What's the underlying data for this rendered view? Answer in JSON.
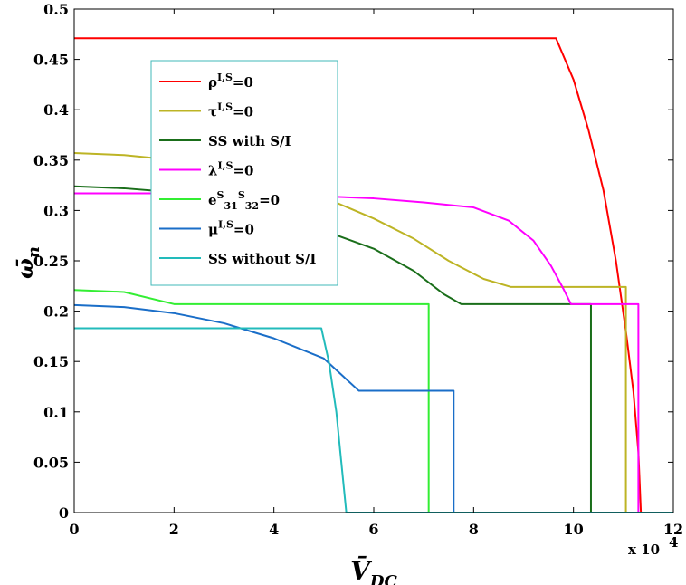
{
  "chart_data": {
    "type": "line",
    "xlabel": "V̄DC",
    "ylabel": "ω̄n",
    "x_multiplier": "x 10",
    "x_multiplier_exp": "4",
    "xlim": [
      0,
      12
    ],
    "ylim": [
      0,
      0.5
    ],
    "xticks": [
      0,
      2,
      4,
      6,
      8,
      10,
      12
    ],
    "yticks": [
      0,
      0.05,
      0.1,
      0.15,
      0.2,
      0.25,
      0.3,
      0.35,
      0.4,
      0.45,
      0.5
    ],
    "ytick_labels": [
      "0",
      "0.05",
      "0.1",
      "0.15",
      "0.2",
      "0.25",
      "0.3",
      "0.35",
      "0.4",
      "0.45",
      "0.5"
    ],
    "grid": false,
    "legend_position": "upper-left",
    "series": [
      {
        "name": "ρI,S=0",
        "base": "ρ",
        "sup": "I,S",
        "sub": "",
        "sup2": "",
        "sub2": "",
        "tail": "=0",
        "color": "#ff0000",
        "points": [
          [
            0,
            0.471
          ],
          [
            9.65,
            0.471
          ],
          [
            10.0,
            0.43
          ],
          [
            10.3,
            0.38
          ],
          [
            10.6,
            0.32
          ],
          [
            10.85,
            0.25
          ],
          [
            11.05,
            0.18
          ],
          [
            11.2,
            0.12
          ],
          [
            11.3,
            0.06
          ],
          [
            11.35,
            0.0
          ],
          [
            12,
            0.0
          ]
        ]
      },
      {
        "name": "τI,S=0",
        "base": "τ",
        "sup": "I,S",
        "sub": "",
        "sup2": "",
        "sub2": "",
        "tail": "=0",
        "color": "#bdb425",
        "points": [
          [
            0,
            0.357
          ],
          [
            1,
            0.355
          ],
          [
            2,
            0.35
          ],
          [
            3,
            0.34
          ],
          [
            4,
            0.328
          ],
          [
            5,
            0.313
          ],
          [
            6,
            0.292
          ],
          [
            6.8,
            0.272
          ],
          [
            7.5,
            0.25
          ],
          [
            8.2,
            0.232
          ],
          [
            8.75,
            0.224
          ],
          [
            11.05,
            0.224
          ],
          [
            11.05,
            0.0
          ],
          [
            12,
            0.0
          ]
        ]
      },
      {
        "name": "SS with S/I",
        "base": "SS with S/I",
        "sup": "",
        "sub": "",
        "sup2": "",
        "sub2": "",
        "tail": "",
        "color": "#1a6e1a",
        "points": [
          [
            0,
            0.324
          ],
          [
            1,
            0.322
          ],
          [
            2,
            0.318
          ],
          [
            3,
            0.31
          ],
          [
            4,
            0.298
          ],
          [
            5,
            0.28
          ],
          [
            6,
            0.262
          ],
          [
            6.8,
            0.24
          ],
          [
            7.4,
            0.217
          ],
          [
            7.75,
            0.207
          ],
          [
            10.35,
            0.207
          ],
          [
            10.35,
            0.0
          ],
          [
            12,
            0.0
          ]
        ]
      },
      {
        "name": "λI,S=0",
        "base": "λ",
        "sup": "I,S",
        "sub": "",
        "sup2": "",
        "sub2": "",
        "tail": "=0",
        "color": "#ff00ff",
        "points": [
          [
            0,
            0.317
          ],
          [
            2,
            0.317
          ],
          [
            4,
            0.316
          ],
          [
            6,
            0.312
          ],
          [
            7,
            0.308
          ],
          [
            8,
            0.303
          ],
          [
            8.7,
            0.29
          ],
          [
            9.2,
            0.27
          ],
          [
            9.55,
            0.245
          ],
          [
            9.8,
            0.222
          ],
          [
            9.95,
            0.207
          ],
          [
            11.3,
            0.207
          ],
          [
            11.3,
            0.0
          ],
          [
            12,
            0.0
          ]
        ]
      },
      {
        "name": "eS31=eS32=0",
        "base": "e",
        "sup": "S",
        "sub": "31",
        "sup2": "S",
        "sub2": "32",
        "tail": "=0",
        "color": "#33ee33",
        "points": [
          [
            0,
            0.221
          ],
          [
            1,
            0.219
          ],
          [
            2,
            0.207
          ],
          [
            7.1,
            0.207
          ],
          [
            7.1,
            0.0
          ],
          [
            12,
            0.0
          ]
        ]
      },
      {
        "name": "μI,S=0",
        "base": "μ",
        "sup": "I,S",
        "sub": "",
        "sup2": "",
        "sub2": "",
        "tail": "=0",
        "color": "#1a6ec8",
        "points": [
          [
            0,
            0.206
          ],
          [
            1,
            0.204
          ],
          [
            2,
            0.198
          ],
          [
            3,
            0.188
          ],
          [
            4,
            0.173
          ],
          [
            5,
            0.153
          ],
          [
            5.7,
            0.121
          ],
          [
            7.6,
            0.121
          ],
          [
            7.6,
            0.0
          ],
          [
            12,
            0.0
          ]
        ]
      },
      {
        "name": "SS without S/I",
        "base": "SS without S/I",
        "sup": "",
        "sub": "",
        "sup2": "",
        "sub2": "",
        "tail": "",
        "color": "#22bbbb",
        "points": [
          [
            0,
            0.183
          ],
          [
            4.95,
            0.183
          ],
          [
            5.1,
            0.15
          ],
          [
            5.25,
            0.1
          ],
          [
            5.35,
            0.05
          ],
          [
            5.45,
            0.0
          ],
          [
            12,
            0.0
          ]
        ]
      }
    ]
  }
}
